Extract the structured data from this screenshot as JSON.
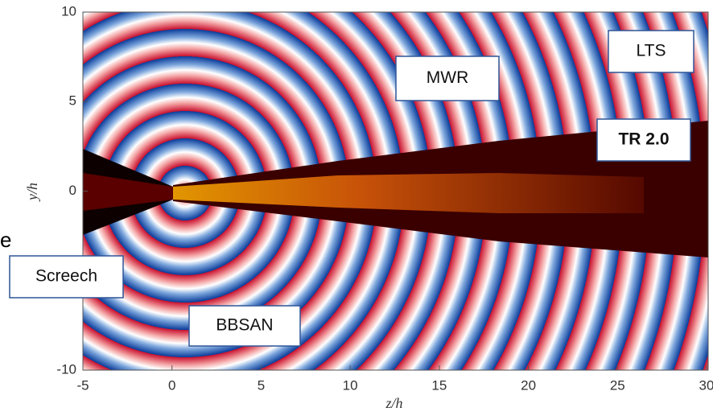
{
  "plot": {
    "xlabel": "z/h",
    "ylabel": "y/h",
    "xlim": [
      -5,
      30
    ],
    "ylim": [
      -10,
      10
    ],
    "xticks": [
      -5,
      0,
      5,
      10,
      15,
      20,
      25,
      30
    ],
    "yticks": [
      -10,
      0,
      5,
      10
    ]
  },
  "annotations": [
    {
      "label": "Screech"
    },
    {
      "label": "BBSAN"
    },
    {
      "label": "MWR"
    },
    {
      "label": "LTS"
    },
    {
      "label": "TR 2.0"
    }
  ],
  "stray_text": "e"
}
